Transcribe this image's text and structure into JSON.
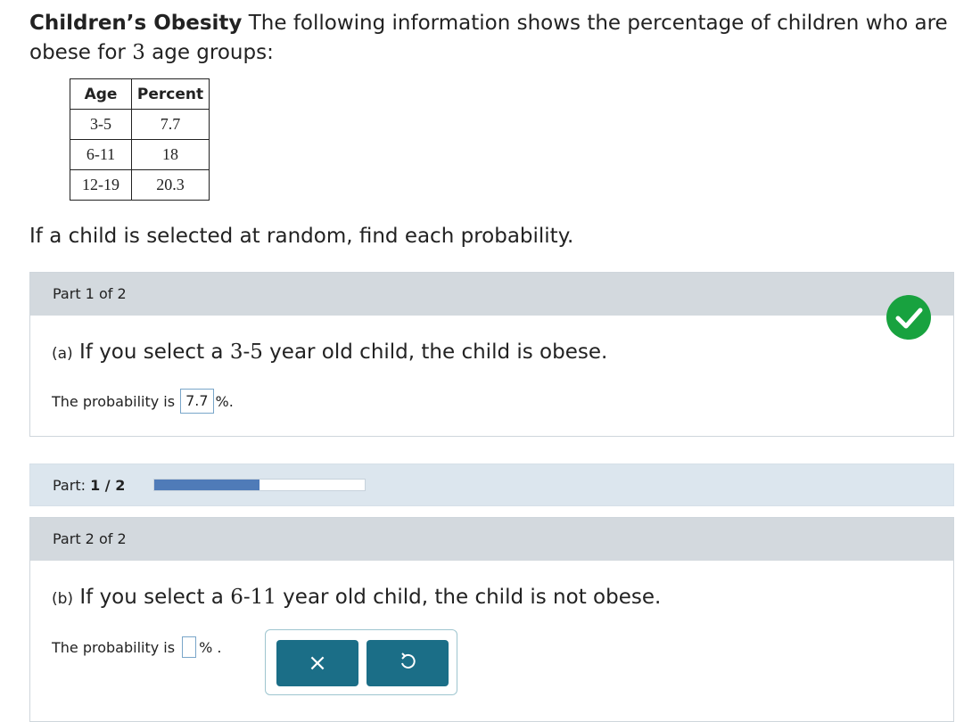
{
  "header": {
    "title_bold": "Children’s Obesity",
    "intro_before": " The following information shows the percentage of children who are obese for ",
    "intro_count": "3",
    "intro_after": " age groups:"
  },
  "table": {
    "headers": [
      "Age",
      "Percent"
    ],
    "rows": [
      [
        "3-5",
        "7.7"
      ],
      [
        "6-11",
        "18"
      ],
      [
        "12-19",
        "20.3"
      ]
    ]
  },
  "question": "If a child is selected at random, find each probability.",
  "part1": {
    "header": "Part 1 of 2",
    "label": "(a)",
    "text_before": " If you select a ",
    "range": "3-5",
    "text_after": " year old child, the child is obese.",
    "prob_prefix": "The probability is",
    "answer": "7.7",
    "prob_suffix": "%."
  },
  "progress": {
    "label": "Part:",
    "value": "1 / 2",
    "fraction": 0.5
  },
  "part2": {
    "header": "Part 2 of 2",
    "label": "(b)",
    "text_before": " If you select a ",
    "range": "6-11",
    "text_after": " year old child, the child is not obese.",
    "prob_prefix": "The probability is",
    "answer": "",
    "prob_suffix": "% ."
  },
  "tools": {
    "clear_symbol": "×",
    "undo_icon": "undo-icon"
  },
  "colors": {
    "check": "#18a23f",
    "button": "#1b6e87",
    "progress_fill": "#4f7bb8"
  }
}
